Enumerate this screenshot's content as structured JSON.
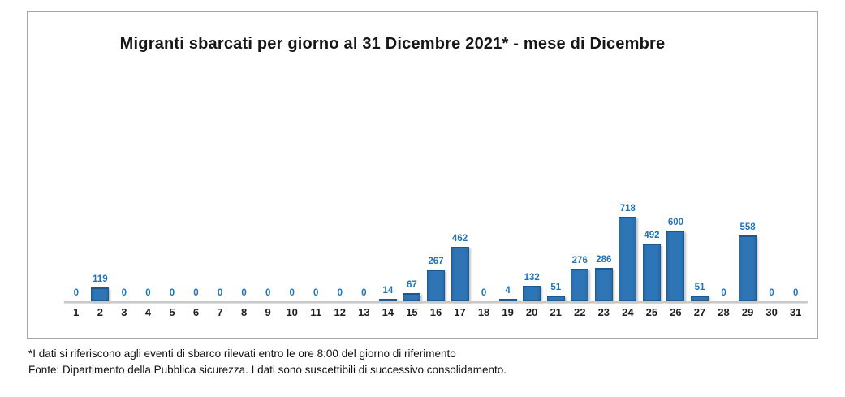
{
  "chart_data": {
    "type": "bar",
    "title": "Migranti sbarcati per giorno al 31 Dicembre 2021* - mese di Dicembre",
    "categories": [
      "1",
      "2",
      "3",
      "4",
      "5",
      "6",
      "7",
      "8",
      "9",
      "10",
      "11",
      "12",
      "13",
      "14",
      "15",
      "16",
      "17",
      "18",
      "19",
      "20",
      "21",
      "22",
      "23",
      "24",
      "25",
      "26",
      "27",
      "28",
      "29",
      "30",
      "31"
    ],
    "values": [
      0,
      119,
      0,
      0,
      0,
      0,
      0,
      0,
      0,
      0,
      0,
      0,
      0,
      14,
      67,
      267,
      462,
      0,
      4,
      132,
      51,
      276,
      286,
      718,
      492,
      600,
      51,
      0,
      558,
      0,
      0
    ],
    "xlabel": "",
    "ylabel": "",
    "layout_hints": {
      "data_labels": true,
      "grid": false,
      "legend": "none",
      "y_axis_visible": false
    },
    "colors": {
      "bar_fill": "#2e75b6",
      "bar_border": "#1e5c94",
      "value_label": "#2272b9",
      "axis_line": "#c9c9c9",
      "title_text": "#171717",
      "category_label": "#1f1f1f"
    }
  },
  "footnotes": {
    "line1": "*I dati si riferiscono agli eventi di sbarco rilevati entro le ore 8:00 del giorno di riferimento",
    "line2": "Fonte: Dipartimento della Pubblica sicurezza. I dati sono suscettibili di successivo consolidamento."
  }
}
